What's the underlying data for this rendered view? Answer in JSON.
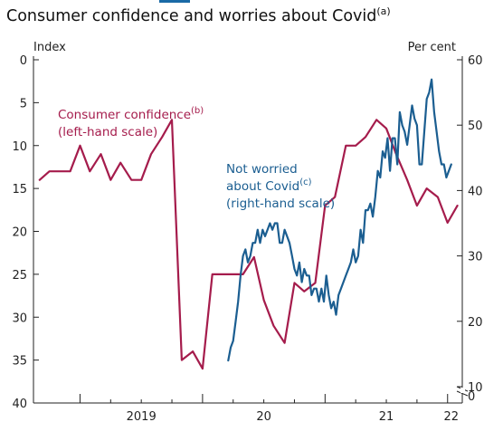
{
  "page": {
    "title": "Consumer confidence and worries about Covid",
    "title_note": "(a)"
  },
  "chart_data": {
    "type": "line",
    "title": "Consumer confidence and worries about Covid(a)",
    "left_axis": {
      "unit_label": "Index",
      "range": [
        40,
        0
      ],
      "inverted": true,
      "ticks": [
        "0",
        "5",
        "10",
        "15",
        "20",
        "25",
        "30",
        "35",
        "40"
      ]
    },
    "right_axis": {
      "unit_label": "Per cent",
      "range": [
        10,
        60
      ],
      "ticks": [
        "60",
        "50",
        "40",
        "30",
        "20",
        "10",
        "0"
      ],
      "broken_below": 10
    },
    "x_axis": {
      "range": [
        2018.62,
        2022.12
      ],
      "tick_labels": [
        "2019",
        "20",
        "21",
        "22"
      ],
      "label_positions": [
        2019.5,
        2020.5,
        2021.5,
        2022.03
      ]
    },
    "grid": false,
    "series": [
      {
        "name": "Consumer confidence",
        "note": "(b)",
        "label_lines": [
          "Consumer confidence",
          "(left-hand scale)"
        ],
        "axis": "left",
        "color": "#a51c4c",
        "x": [
          2018.67,
          2018.75,
          2018.83,
          2018.92,
          2019.0,
          2019.08,
          2019.17,
          2019.25,
          2019.33,
          2019.42,
          2019.5,
          2019.58,
          2019.67,
          2019.75,
          2019.83,
          2019.92,
          2020.0,
          2020.08,
          2020.17,
          2020.25,
          2020.33,
          2020.42,
          2020.5,
          2020.58,
          2020.67,
          2020.75,
          2020.83,
          2020.92,
          2021.0,
          2021.08,
          2021.17,
          2021.25,
          2021.33,
          2021.42,
          2021.5,
          2021.58,
          2021.67,
          2021.75,
          2021.83,
          2021.92,
          2022.0,
          2022.08
        ],
        "y": [
          14,
          13,
          13,
          13,
          10,
          13,
          11,
          14,
          12,
          14,
          14,
          11,
          9,
          7,
          35,
          34,
          36,
          25,
          25,
          25,
          25,
          23,
          28,
          31,
          33,
          26,
          27,
          26,
          17,
          16,
          10,
          10,
          9,
          7,
          8,
          11,
          14,
          17,
          15,
          16,
          19,
          17
        ]
      },
      {
        "name": "Not worried about Covid",
        "note": "(c)",
        "label_lines": [
          "Not worried",
          "about Covid",
          "(right-hand scale)"
        ],
        "axis": "right",
        "color": "#1b5e91",
        "x": [
          2020.21,
          2020.23,
          2020.25,
          2020.27,
          2020.29,
          2020.31,
          2020.33,
          2020.35,
          2020.37,
          2020.39,
          2020.41,
          2020.43,
          2020.45,
          2020.47,
          2020.49,
          2020.51,
          2020.53,
          2020.55,
          2020.57,
          2020.59,
          2020.61,
          2020.63,
          2020.65,
          2020.67,
          2020.69,
          2020.71,
          2020.73,
          2020.75,
          2020.77,
          2020.79,
          2020.81,
          2020.83,
          2020.85,
          2020.87,
          2020.89,
          2020.91,
          2020.93,
          2020.95,
          2020.97,
          2020.99,
          2021.01,
          2021.03,
          2021.05,
          2021.07,
          2021.09,
          2021.11,
          2021.13,
          2021.15,
          2021.17,
          2021.19,
          2021.21,
          2021.23,
          2021.25,
          2021.27,
          2021.29,
          2021.31,
          2021.33,
          2021.35,
          2021.37,
          2021.39,
          2021.41,
          2021.43,
          2021.45,
          2021.47,
          2021.49,
          2021.51,
          2021.53,
          2021.55,
          2021.57,
          2021.59,
          2021.61,
          2021.63,
          2021.65,
          2021.67,
          2021.69,
          2021.71,
          2021.73,
          2021.75,
          2021.77,
          2021.79,
          2021.81,
          2021.83,
          2021.85,
          2021.87,
          2021.89,
          2021.91,
          2021.93,
          2021.95,
          2021.97,
          2021.99,
          2022.01,
          2022.03
        ],
        "y": [
          14,
          16,
          17,
          20,
          23,
          27,
          30,
          31,
          29,
          30,
          32,
          32,
          34,
          32,
          34,
          33,
          34,
          35,
          34,
          35,
          35,
          32,
          32,
          34,
          33,
          32,
          30,
          28,
          27,
          29,
          26,
          28,
          27,
          27,
          24,
          25,
          25,
          23,
          25,
          23,
          27,
          24,
          22,
          23,
          21,
          24,
          25,
          26,
          27,
          28,
          29,
          31,
          29,
          30,
          34,
          32,
          37,
          37,
          38,
          36,
          39,
          43,
          42,
          46,
          45,
          48,
          43,
          48,
          48,
          44,
          52,
          50,
          49,
          47,
          50,
          53,
          51,
          50,
          44,
          44,
          49,
          54,
          55,
          57,
          52,
          49,
          46,
          44,
          44,
          42,
          43,
          44
        ]
      }
    ]
  }
}
